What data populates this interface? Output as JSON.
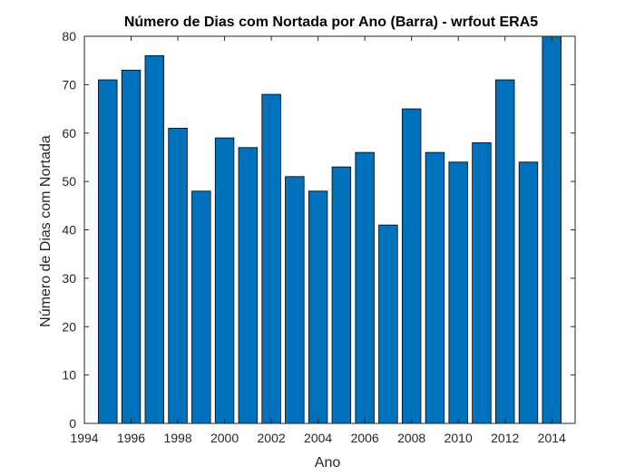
{
  "chart_data": {
    "type": "bar",
    "title": "Número de Dias com Nortada por Ano (Barra) - wrfout ERA5",
    "xlabel": "Ano",
    "ylabel": "Número de Dias com Nortada",
    "categories": [
      1995,
      1996,
      1997,
      1998,
      1999,
      2000,
      2001,
      2002,
      2003,
      2004,
      2005,
      2006,
      2007,
      2008,
      2009,
      2010,
      2011,
      2012,
      2013,
      2014
    ],
    "values": [
      71,
      73,
      76,
      61,
      48,
      59,
      57,
      68,
      51,
      48,
      53,
      56,
      41,
      65,
      56,
      54,
      58,
      71,
      54,
      80
    ],
    "xlim": [
      1994,
      2015
    ],
    "ylim": [
      0,
      80
    ],
    "xticks": [
      "1994",
      "1996",
      "1998",
      "2000",
      "2002",
      "2004",
      "2006",
      "2008",
      "2010",
      "2012",
      "2014"
    ],
    "yticks": [
      "0",
      "10",
      "20",
      "30",
      "40",
      "50",
      "60",
      "70",
      "80"
    ],
    "grid": false,
    "bar_color": "#0072BD",
    "edge_color": "#000000"
  }
}
